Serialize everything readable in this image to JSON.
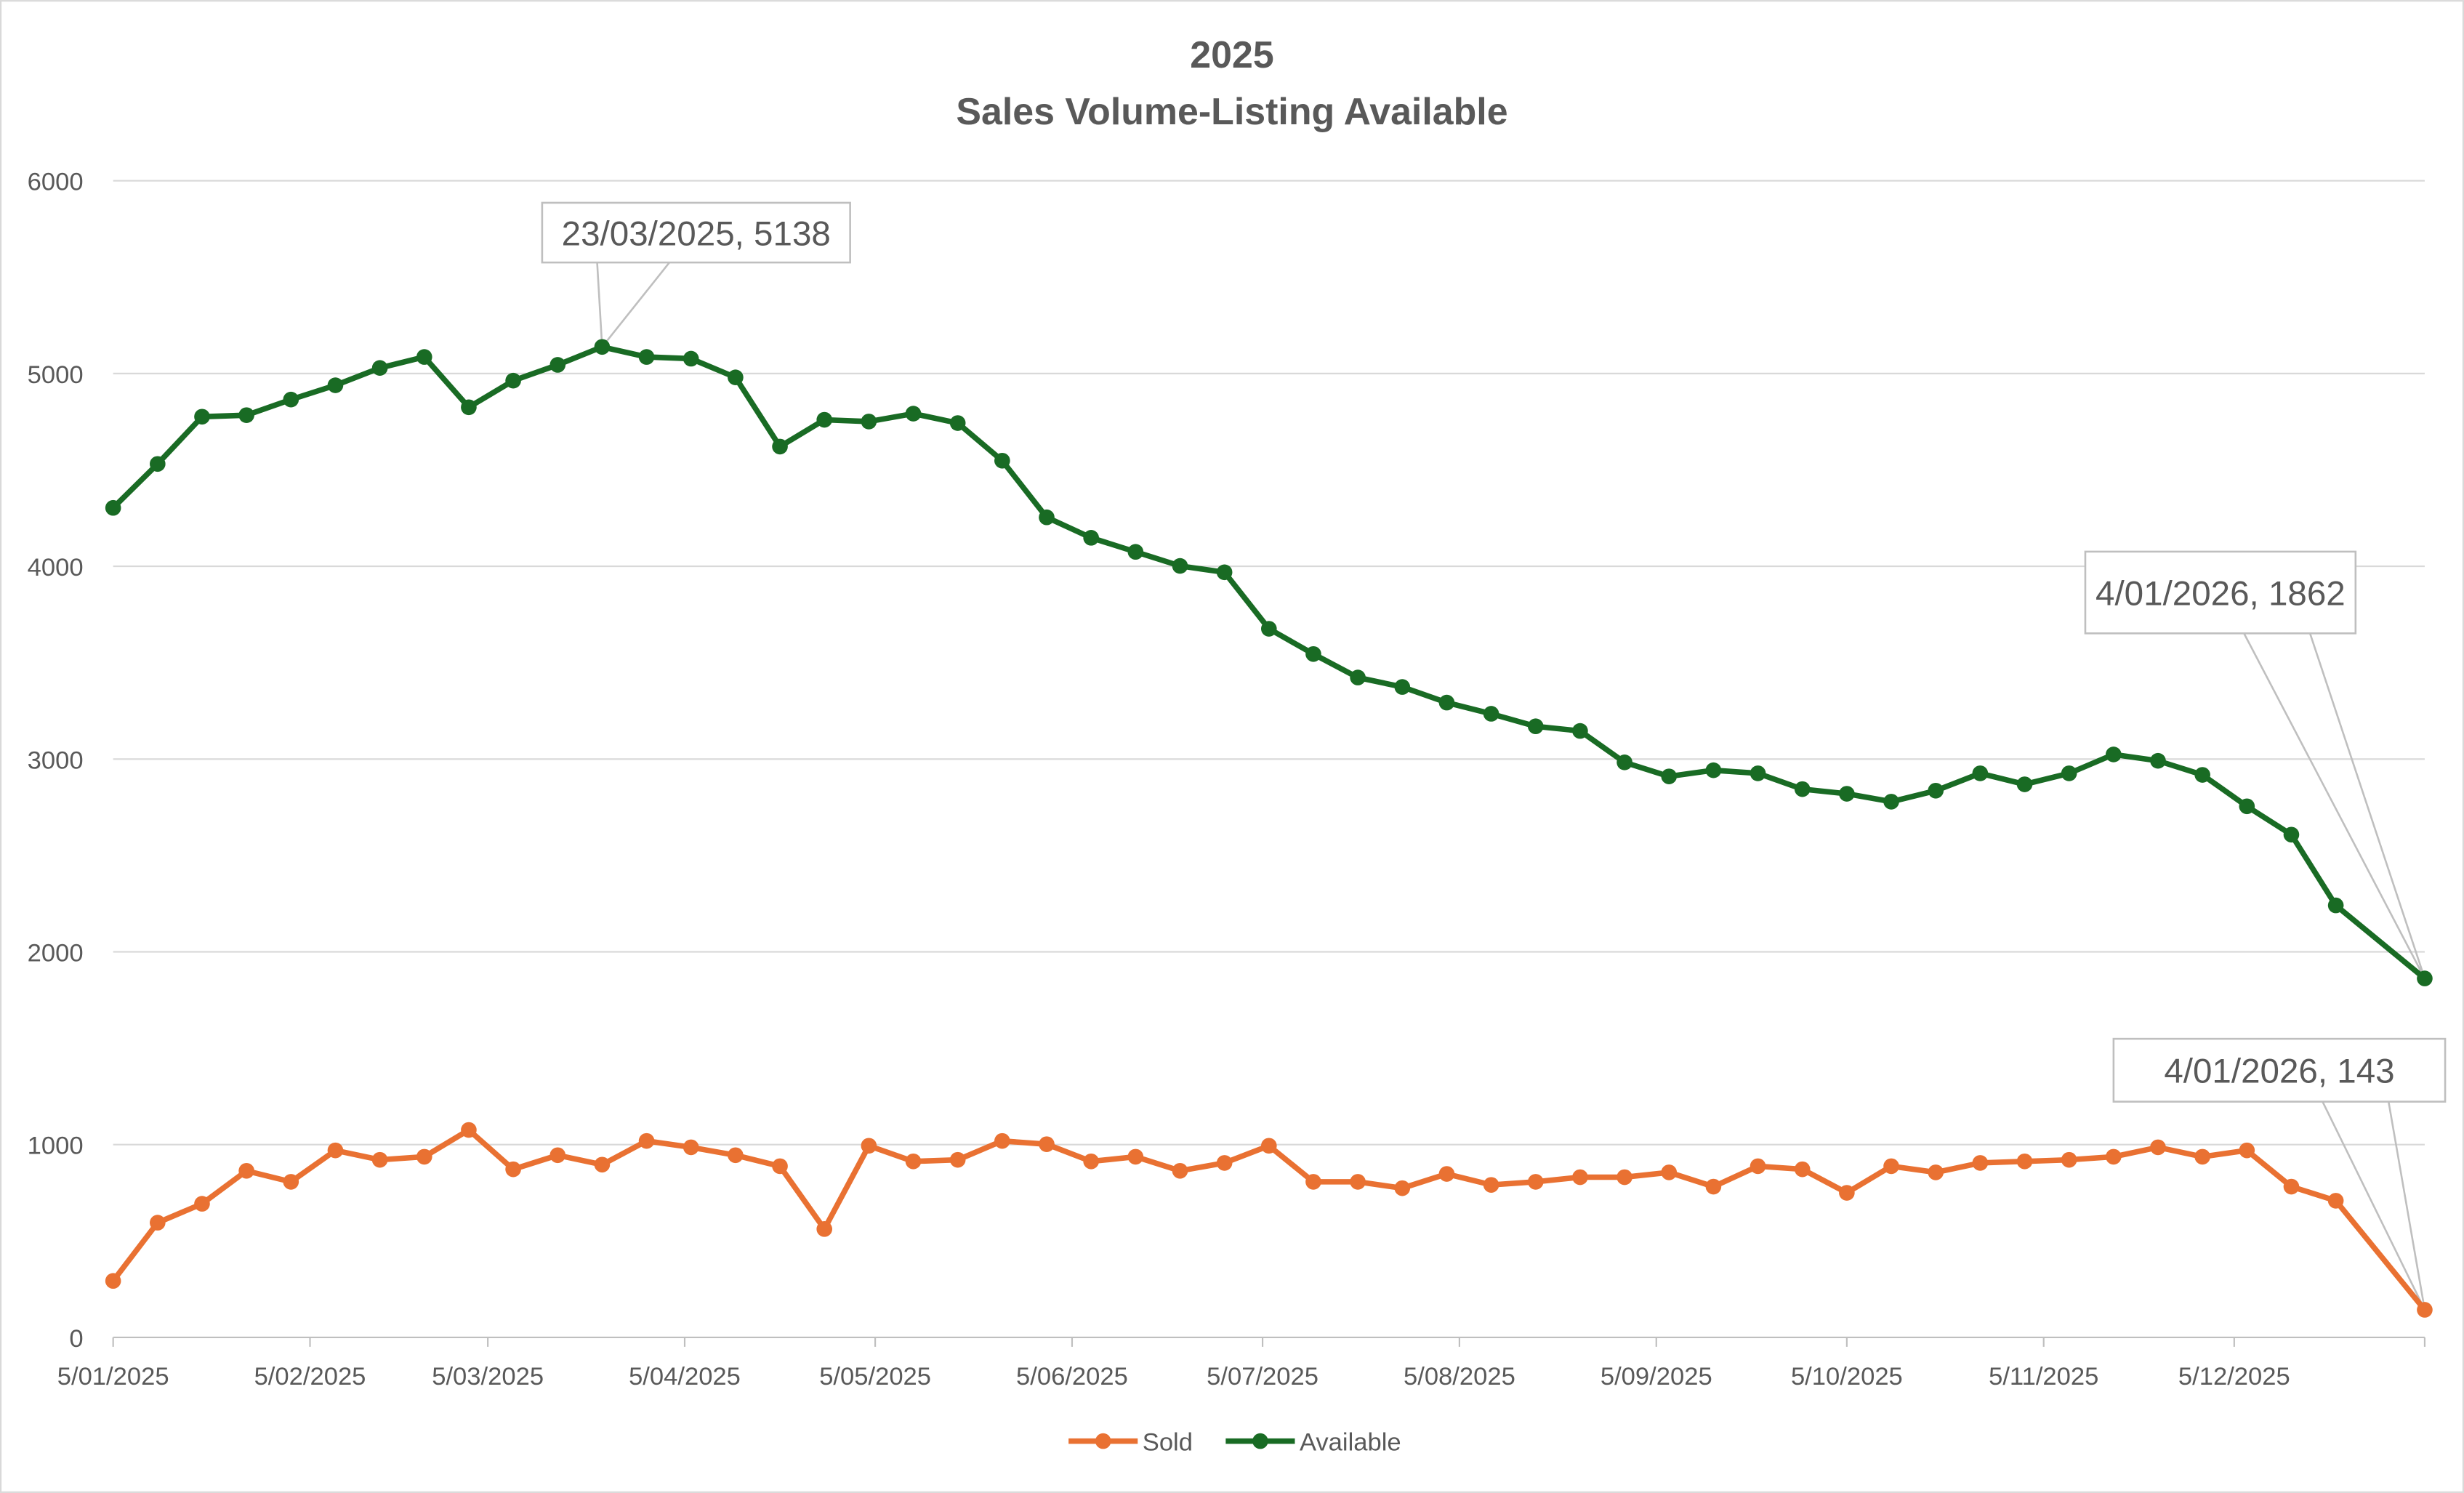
{
  "chart_data": {
    "type": "line",
    "title": "2025",
    "subtitle": "Sales Volume-Listing Available",
    "xlabel": "",
    "ylabel": "",
    "ylim": [
      0,
      6000
    ],
    "yticks": [
      0,
      1000,
      2000,
      3000,
      4000,
      5000,
      6000
    ],
    "xlim": [
      "5/01/2025",
      "4/01/2026"
    ],
    "xtick_labels": [
      "5/01/2025",
      "5/02/2025",
      "5/03/2025",
      "5/04/2025",
      "5/05/2025",
      "5/06/2025",
      "5/07/2025",
      "5/08/2025",
      "5/09/2025",
      "5/10/2025",
      "5/11/2025",
      "5/12/2025"
    ],
    "grid": "horizontal",
    "legend": "bottom",
    "x": [
      "5/01/2025",
      "12/01/2025",
      "19/01/2025",
      "26/01/2025",
      "2/02/2025",
      "9/02/2025",
      "16/02/2025",
      "23/02/2025",
      "2/03/2025",
      "9/03/2025",
      "16/03/2025",
      "23/03/2025",
      "30/03/2025",
      "6/04/2025",
      "13/04/2025",
      "20/04/2025",
      "27/04/2025",
      "4/05/2025",
      "11/05/2025",
      "18/05/2025",
      "25/05/2025",
      "1/06/2025",
      "8/06/2025",
      "15/06/2025",
      "22/06/2025",
      "29/06/2025",
      "6/07/2025",
      "13/07/2025",
      "20/07/2025",
      "27/07/2025",
      "3/08/2025",
      "10/08/2025",
      "17/08/2025",
      "24/08/2025",
      "31/08/2025",
      "7/09/2025",
      "14/09/2025",
      "21/09/2025",
      "28/09/2025",
      "5/10/2025",
      "12/10/2025",
      "19/10/2025",
      "26/10/2025",
      "2/11/2025",
      "9/11/2025",
      "16/11/2025",
      "23/11/2025",
      "30/11/2025",
      "7/12/2025",
      "14/12/2025",
      "21/12/2025",
      "4/01/2026"
    ],
    "series": [
      {
        "name": "Sold",
        "color": "#E97132",
        "values": [
          293,
          595,
          693,
          864,
          807,
          970,
          921,
          937,
          1076,
          872,
          945,
          896,
          1019,
          986,
          945,
          888,
          562,
          994,
          913,
          921,
          1019,
          1002,
          913,
          937,
          864,
          905,
          994,
          807,
          807,
          774,
          848,
          791,
          807,
          831,
          831,
          856,
          782,
          888,
          872,
          750,
          888,
          856,
          905,
          913,
          921,
          937,
          986,
          937,
          970,
          782,
          709,
          143
        ]
      },
      {
        "name": "Available",
        "color": "#196B24",
        "values": [
          4303,
          4531,
          4776,
          4784,
          4865,
          4939,
          5029,
          5086,
          4825,
          4963,
          5045,
          5138,
          5086,
          5077,
          4980,
          4621,
          4760,
          4751,
          4792,
          4743,
          4548,
          4254,
          4148,
          4075,
          4002,
          3969,
          3676,
          3545,
          3423,
          3374,
          3293,
          3235,
          3170,
          3146,
          2983,
          2910,
          2942,
          2926,
          2844,
          2820,
          2779,
          2836,
          2926,
          2869,
          2926,
          3024,
          2991,
          2918,
          2755,
          2608,
          2241,
          1862
        ]
      }
    ],
    "annotations": [
      {
        "series": "Available",
        "x": "23/03/2025",
        "label": "23/03/2025, 5138"
      },
      {
        "series": "Available",
        "x": "4/01/2026",
        "label": "4/01/2026, 1862"
      },
      {
        "series": "Sold",
        "x": "4/01/2026",
        "label": "4/01/2026, 143"
      }
    ]
  }
}
